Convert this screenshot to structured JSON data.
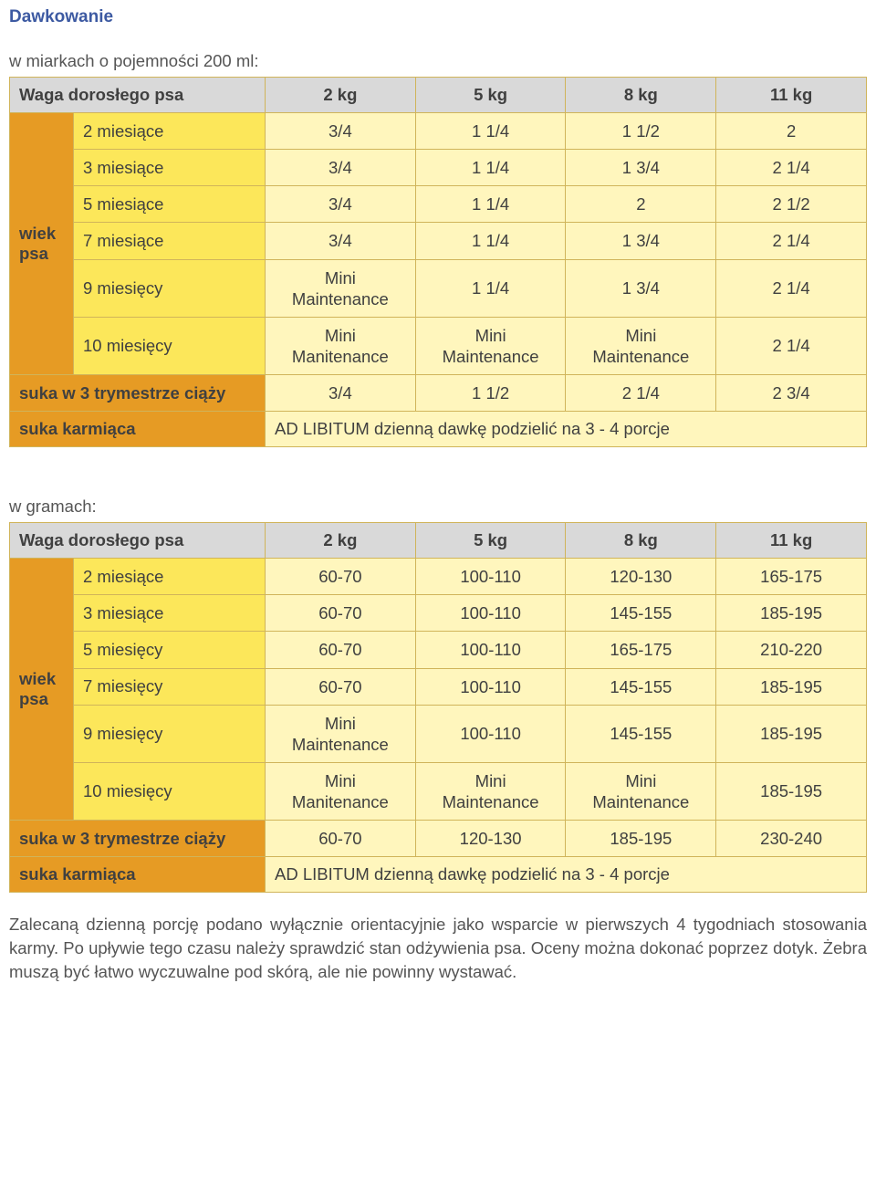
{
  "title": "Dawkowanie",
  "sub1": "w miarkach o pojemności 200 ml:",
  "sub2": "w gramach:",
  "header": {
    "lab": "Waga dorosłego psa",
    "c1": "2 kg",
    "c2": "5 kg",
    "c3": "8 kg",
    "c4": "11 kg"
  },
  "side_label": "wiek psa",
  "t1": {
    "rows": [
      {
        "lab": "2 miesiące",
        "v": [
          "3/4",
          "1 1/4",
          "1 1/2",
          "2"
        ]
      },
      {
        "lab": "3 miesiące",
        "v": [
          "3/4",
          "1 1/4",
          "1 3/4",
          "2 1/4"
        ]
      },
      {
        "lab": "5 miesiące",
        "v": [
          "3/4",
          "1 1/4",
          "2",
          "2 1/2"
        ]
      },
      {
        "lab": "7 miesiące",
        "v": [
          "3/4",
          "1 1/4",
          "1 3/4",
          "2 1/4"
        ]
      },
      {
        "lab": "9 miesięcy",
        "v": [
          "Mini\nMaintenance",
          "1 1/4",
          "1 3/4",
          "2 1/4"
        ]
      },
      {
        "lab": "10 miesięcy",
        "v": [
          "Mini\nManitenance",
          "Mini\nMaintenance",
          "Mini\nMaintenance",
          "2 1/4"
        ]
      }
    ],
    "suka3": {
      "lab": "suka w 3 trymestrze ciąży",
      "v": [
        "3/4",
        "1 1/2",
        "2 1/4",
        "2 3/4"
      ]
    },
    "karm": {
      "lab": "suka karmiąca",
      "text": "AD LIBITUM dzienną dawkę podzielić na 3 - 4 porcje"
    }
  },
  "t2": {
    "rows": [
      {
        "lab": "2 miesiące",
        "v": [
          "60-70",
          "100-110",
          "120-130",
          "165-175"
        ]
      },
      {
        "lab": "3 miesiące",
        "v": [
          "60-70",
          "100-110",
          "145-155",
          "185-195"
        ]
      },
      {
        "lab": "5 miesięcy",
        "v": [
          "60-70",
          "100-110",
          "165-175",
          "210-220"
        ]
      },
      {
        "lab": "7 miesięcy",
        "v": [
          "60-70",
          "100-110",
          "145-155",
          "185-195"
        ]
      },
      {
        "lab": "9 miesięcy",
        "v": [
          "Mini\nMaintenance",
          "100-110",
          "145-155",
          "185-195"
        ]
      },
      {
        "lab": "10 miesięcy",
        "v": [
          "Mini\nManitenance",
          "Mini\nMaintenance",
          "Mini\nMaintenance",
          "185-195"
        ]
      }
    ],
    "suka3": {
      "lab": "suka w 3 trymestrze ciąży",
      "v": [
        "60-70",
        "120-130",
        "185-195",
        "230-240"
      ]
    },
    "karm": {
      "lab": "suka karmiąca",
      "text": "AD LIBITUM dzienną dawkę podzielić na 3 - 4 porcje"
    }
  },
  "footer": "Zalecaną dzienną porcję podano wyłącznie orientacyjnie jako wsparcie w pierwszych 4 tygodniach stosowania karmy. Po upływie tego czasu należy sprawdzić stan odżywienia psa. Oceny można dokonać poprzez dotyk. Żebra muszą być łatwo wyczuwalne pod skórą, ale nie powinny wystawać."
}
